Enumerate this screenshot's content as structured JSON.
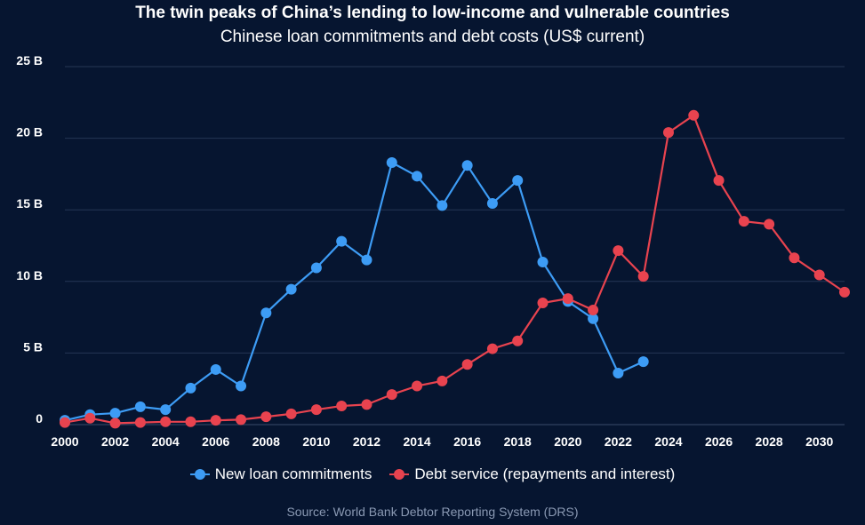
{
  "header": {
    "title": "The twin peaks of China’s lending to low-income and vulnerable countries",
    "subtitle": "Chinese loan commitments and debt costs (US$ current)"
  },
  "source": "Source: World Bank Debtor Reporting System (DRS)",
  "colors": {
    "background": "#061530",
    "grid": "#253655",
    "series_blue": "#3d9cf5",
    "series_red": "#e8434f"
  },
  "chart_data": {
    "type": "line",
    "title": "The twin peaks of China’s lending to low-income and vulnerable countries",
    "subtitle": "Chinese loan commitments and debt costs (US$ current)",
    "xlabel": "",
    "ylabel": "",
    "xlim": [
      2000,
      2031
    ],
    "ylim": [
      0,
      25
    ],
    "x_ticks": [
      "2000",
      "2002",
      "2004",
      "2006",
      "2008",
      "2010",
      "2012",
      "2014",
      "2016",
      "2018",
      "2020",
      "2022",
      "2024",
      "2026",
      "2028",
      "2030"
    ],
    "y_ticks": [
      "0",
      "5 B",
      "10 B",
      "15 B",
      "20 B",
      "25 B"
    ],
    "grid": "horizontal",
    "legend_position": "bottom",
    "series": [
      {
        "name": "New loan commitments",
        "color": "#3d9cf5",
        "x": [
          2000,
          2001,
          2002,
          2003,
          2004,
          2005,
          2006,
          2007,
          2008,
          2009,
          2010,
          2011,
          2012,
          2013,
          2014,
          2015,
          2016,
          2017,
          2018,
          2019,
          2020,
          2021,
          2022,
          2023
        ],
        "values": [
          0.3,
          0.7,
          0.8,
          1.25,
          1.05,
          2.55,
          3.85,
          2.7,
          7.8,
          9.45,
          10.95,
          12.8,
          11.5,
          18.3,
          17.35,
          15.3,
          18.1,
          15.45,
          17.05,
          11.35,
          8.6,
          7.4,
          3.6,
          4.4
        ]
      },
      {
        "name": "Debt service (repayments and interest)",
        "color": "#e8434f",
        "x": [
          2000,
          2001,
          2002,
          2003,
          2004,
          2005,
          2006,
          2007,
          2008,
          2009,
          2010,
          2011,
          2012,
          2013,
          2014,
          2015,
          2016,
          2017,
          2018,
          2019,
          2020,
          2021,
          2022,
          2023,
          2024,
          2025,
          2026,
          2027,
          2028,
          2029,
          2030,
          2031
        ],
        "values": [
          0.15,
          0.45,
          0.1,
          0.15,
          0.2,
          0.2,
          0.3,
          0.35,
          0.55,
          0.75,
          1.05,
          1.3,
          1.4,
          2.1,
          2.7,
          3.05,
          4.2,
          5.3,
          5.85,
          8.5,
          8.8,
          8.0,
          12.15,
          10.35,
          20.4,
          21.6,
          17.05,
          14.2,
          14.0,
          11.65,
          10.45,
          9.25
        ]
      }
    ]
  }
}
